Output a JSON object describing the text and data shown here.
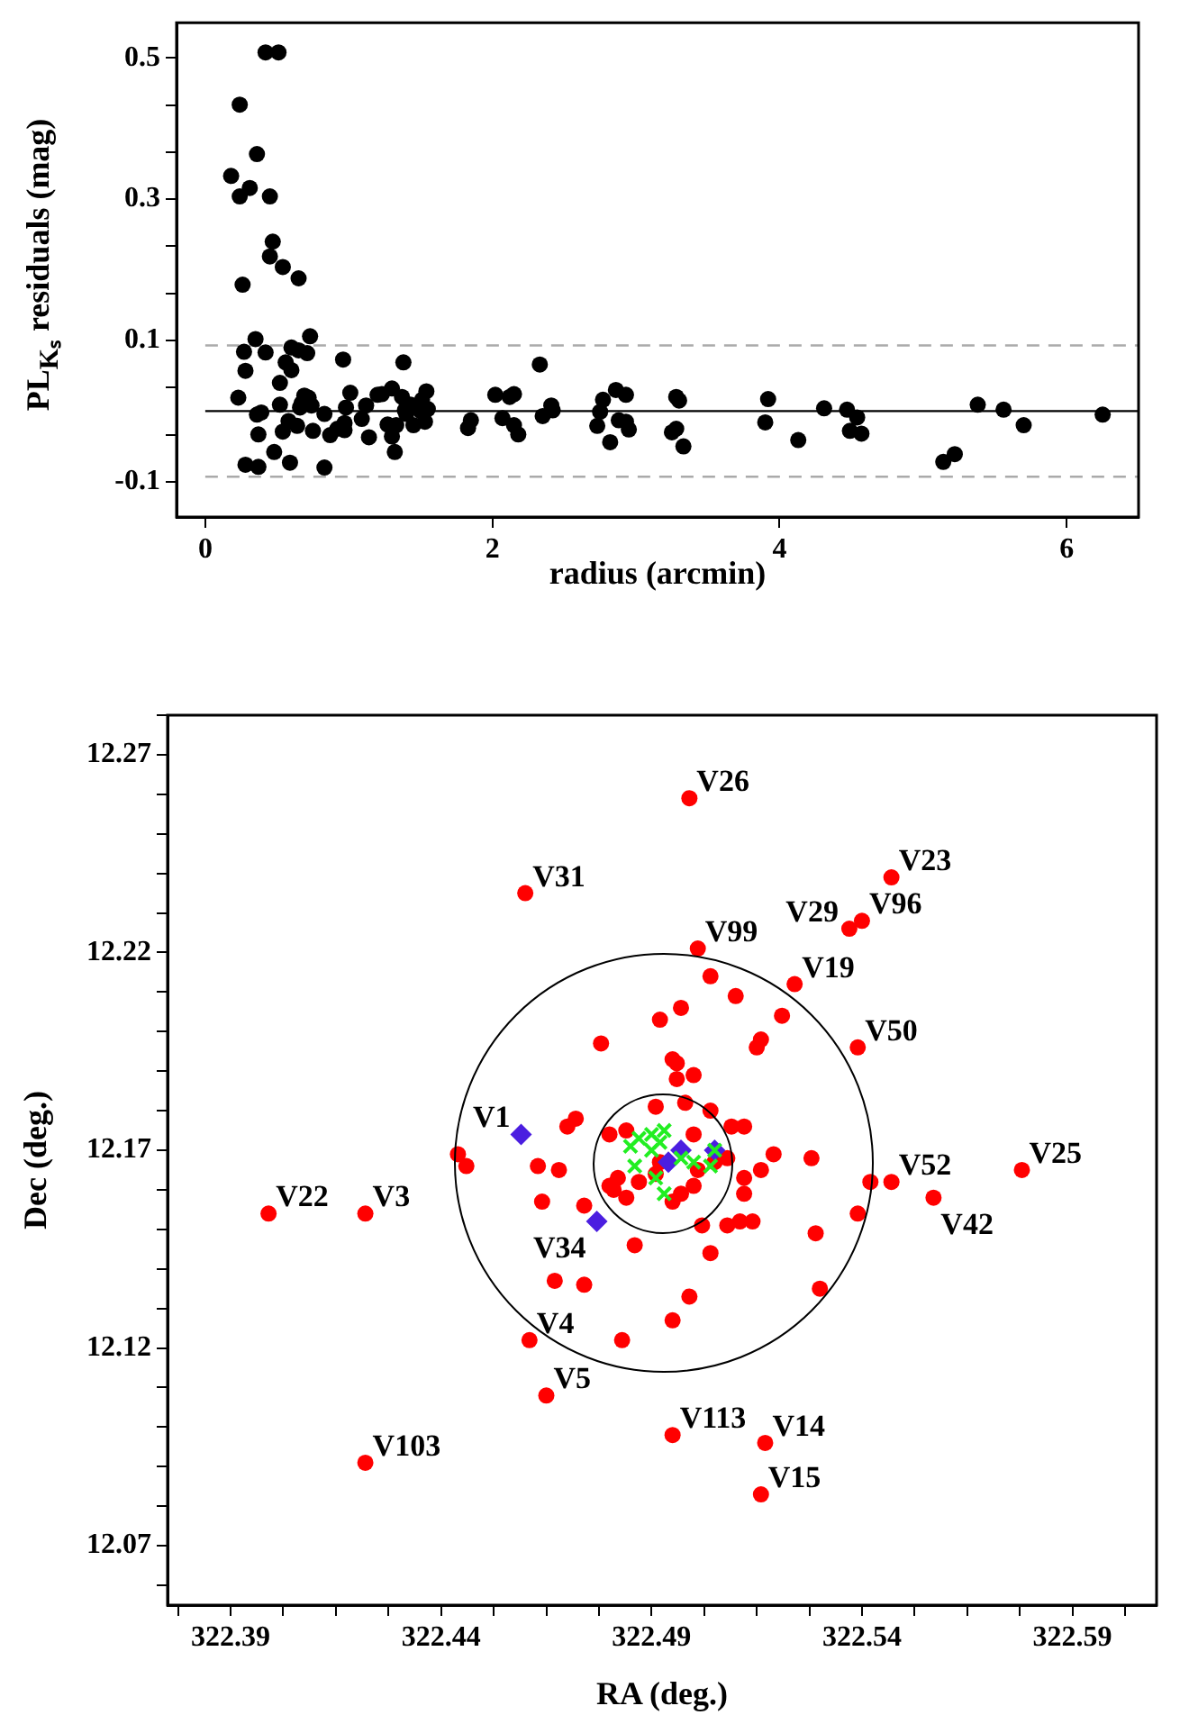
{
  "chart_data": [
    {
      "type": "scatter",
      "xlabel": "radius (arcmin)",
      "ylabel": "PL$_{Kₛ}$ residuals (mag)",
      "xlim": [
        -0.2,
        6.5
      ],
      "ylim": [
        -0.15,
        0.55
      ],
      "xticks": [
        0,
        2,
        4,
        6
      ],
      "yticks": [
        -0.1,
        {
          "value": -0.0333,
          "label": null
        },
        {
          "value": 0.0333,
          "label": null
        },
        0.1,
        {
          "value": 0.1667,
          "label": null
        },
        {
          "value": 0.2333,
          "label": null
        },
        0.3,
        {
          "value": 0.3667,
          "label": null
        },
        {
          "value": 0.4333,
          "label": null
        },
        0.5
      ],
      "ref_lines": [
        {
          "axis": "y",
          "value": 0,
          "color": "#000000",
          "line_style": "solid"
        },
        {
          "axis": "y",
          "value": 0.093,
          "color": "#aaaaaa",
          "line_style": "dashed"
        },
        {
          "axis": "y",
          "value": -0.093,
          "color": "#aaaaaa",
          "line_style": "dashed"
        }
      ],
      "color": "#000000",
      "marker": "circle",
      "x": [
        0.18,
        0.24,
        0.23,
        0.24,
        0.26,
        0.27,
        0.28,
        0.28,
        0.31,
        0.35,
        0.36,
        0.36,
        0.37,
        0.37,
        0.39,
        0.42,
        0.42,
        0.45,
        0.45,
        0.47,
        0.48,
        0.51,
        0.52,
        0.52,
        0.54,
        0.54,
        0.56,
        0.58,
        0.59,
        0.6,
        0.6,
        0.64,
        0.65,
        0.65,
        0.66,
        0.67,
        0.69,
        0.71,
        0.72,
        0.73,
        0.74,
        0.75,
        0.83,
        0.83,
        0.87,
        0.92,
        0.96,
        0.97,
        0.97,
        0.98,
        1.01,
        1.09,
        1.12,
        1.14,
        1.2,
        1.23,
        1.27,
        1.3,
        1.3,
        1.32,
        1.33,
        1.37,
        1.38,
        1.39,
        1.4,
        1.43,
        1.45,
        1.5,
        1.51,
        1.53,
        1.54,
        1.55,
        1.83,
        1.85,
        2.02,
        2.07,
        2.12,
        2.15,
        2.15,
        2.18,
        2.33,
        2.35,
        2.41,
        2.42,
        2.73,
        2.75,
        2.77,
        2.82,
        2.86,
        2.88,
        2.93,
        2.93,
        2.95,
        3.25,
        3.28,
        3.28,
        3.3,
        3.33,
        3.9,
        3.92,
        4.13,
        4.31,
        4.47,
        4.49,
        4.54,
        4.57,
        5.14,
        5.22,
        5.38,
        5.56,
        5.7,
        6.25
      ],
      "values": [
        0.333,
        0.434,
        0.019,
        0.304,
        0.179,
        0.084,
        0.057,
        -0.076,
        0.316,
        0.102,
        0.364,
        -0.005,
        -0.033,
        -0.079,
        -0.002,
        0.508,
        0.083,
        0.304,
        0.219,
        0.24,
        -0.058,
        0.508,
        0.04,
        0.009,
        0.204,
        -0.029,
        0.069,
        -0.014,
        -0.073,
        0.09,
        0.058,
        -0.021,
        0.188,
        0.086,
        0.005,
        0.011,
        0.022,
        0.082,
        0.019,
        0.106,
        0.008,
        -0.028,
        -0.004,
        -0.08,
        -0.034,
        -0.025,
        0.073,
        -0.017,
        -0.027,
        0.005,
        0.026,
        -0.011,
        0.008,
        -0.037,
        0.023,
        0.024,
        -0.019,
        0.032,
        -0.036,
        -0.058,
        -0.02,
        0.02,
        0.069,
        0.001,
        -0.004,
        0.009,
        -0.02,
        0,
        0.016,
        -0.015,
        0.028,
        0.003,
        -0.024,
        -0.013,
        0.023,
        -0.01,
        0.02,
        0.024,
        -0.02,
        -0.033,
        0.066,
        -0.007,
        0.008,
        0.001,
        -0.021,
        -0.001,
        0.016,
        -0.044,
        0.03,
        -0.013,
        0.023,
        -0.015,
        -0.026,
        -0.03,
        0.02,
        -0.025,
        0.015,
        -0.05,
        -0.016,
        0.017,
        -0.041,
        0.004,
        0.002,
        -0.028,
        -0.009,
        -0.032,
        -0.072,
        -0.061,
        0.009,
        0.002,
        -0.02,
        -0.005
      ]
    },
    {
      "type": "scatter",
      "xlabel": "RA (deg.)",
      "ylabel": "Dec (deg.)",
      "xlim": [
        322.375,
        322.61
      ],
      "ylim": [
        12.055,
        12.28
      ],
      "xticks": [
        {
          "value": 322.3775,
          "label": null
        },
        322.39,
        {
          "value": 322.4025,
          "label": null
        },
        {
          "value": 322.415,
          "label": null
        },
        {
          "value": 322.4275,
          "label": null
        },
        322.44,
        {
          "value": 322.4525,
          "label": null
        },
        {
          "value": 322.465,
          "label": null
        },
        {
          "value": 322.4775,
          "label": null
        },
        322.49,
        {
          "value": 322.5025,
          "label": null
        },
        {
          "value": 322.515,
          "label": null
        },
        {
          "value": 322.5275,
          "label": null
        },
        322.54,
        {
          "value": 322.5525,
          "label": null
        },
        {
          "value": 322.565,
          "label": null
        },
        {
          "value": 322.5775,
          "label": null
        },
        322.59,
        {
          "value": 322.6025,
          "label": null
        }
      ],
      "yticks": [
        {
          "value": 12.06,
          "label": null
        },
        12.07,
        {
          "value": 12.08,
          "label": null
        },
        {
          "value": 12.09,
          "label": null
        },
        {
          "value": 12.1,
          "label": null
        },
        {
          "value": 12.11,
          "label": null
        },
        12.12,
        {
          "value": 12.13,
          "label": null
        },
        {
          "value": 12.14,
          "label": null
        },
        {
          "value": 12.15,
          "label": null
        },
        {
          "value": 12.16,
          "label": null
        },
        12.17,
        {
          "value": 12.18,
          "label": null
        },
        {
          "value": 12.19,
          "label": null
        },
        {
          "value": 12.2,
          "label": null
        },
        {
          "value": 12.21,
          "label": null
        },
        12.22,
        {
          "value": 12.23,
          "label": null
        },
        {
          "value": 12.24,
          "label": null
        },
        {
          "value": 12.25,
          "label": null
        },
        {
          "value": 12.26,
          "label": null
        },
        12.27,
        {
          "value": 12.28,
          "label": null
        }
      ],
      "series": [
        {
          "color": "#ff0000",
          "marker": "circle",
          "x": [
            322.499,
            322.46,
            322.547,
            322.54,
            322.537,
            322.501,
            322.524,
            322.539,
            322.547,
            322.578,
            322.557,
            322.399,
            322.422,
            322.461,
            322.465,
            322.495,
            322.517,
            322.516,
            322.422,
            322.504,
            322.51,
            322.497,
            322.492,
            322.521,
            322.516,
            322.515,
            322.478,
            322.495,
            322.496,
            322.496,
            322.5,
            322.472,
            322.47,
            322.463,
            322.468,
            322.464,
            322.474,
            322.444,
            322.446,
            322.491,
            322.498,
            322.504,
            322.509,
            322.512,
            322.519,
            322.516,
            322.528,
            322.542,
            322.539,
            322.529,
            322.512,
            322.512,
            322.508,
            322.511,
            322.514,
            322.502,
            322.504,
            322.486,
            322.467,
            322.474,
            322.499,
            322.495,
            322.483,
            322.53,
            322.48,
            322.484,
            322.5,
            322.482,
            322.481,
            322.484,
            322.495,
            322.497,
            322.5,
            322.491,
            322.487,
            322.48,
            322.492,
            322.501,
            322.505,
            322.508
          ],
          "values": [
            12.259,
            12.235,
            12.239,
            12.228,
            12.226,
            12.221,
            12.212,
            12.196,
            12.162,
            12.165,
            12.158,
            12.154,
            12.154,
            12.122,
            12.108,
            12.098,
            12.096,
            12.083,
            12.091,
            12.214,
            12.209,
            12.206,
            12.203,
            12.204,
            12.198,
            12.196,
            12.197,
            12.193,
            12.192,
            12.188,
            12.189,
            12.178,
            12.176,
            12.166,
            12.165,
            12.157,
            12.156,
            12.169,
            12.166,
            12.181,
            12.182,
            12.18,
            12.176,
            12.176,
            12.169,
            12.165,
            12.168,
            12.162,
            12.154,
            12.149,
            12.163,
            12.159,
            12.151,
            12.152,
            12.152,
            12.151,
            12.144,
            12.146,
            12.137,
            12.136,
            12.133,
            12.127,
            12.122,
            12.135,
            12.174,
            12.175,
            12.174,
            12.163,
            12.16,
            12.158,
            12.157,
            12.159,
            12.161,
            12.164,
            12.162,
            12.161,
            12.167,
            12.165,
            12.167,
            12.168
          ],
          "value_labels": [
            "V26",
            "V31",
            "V23",
            "V96",
            "V29",
            "V99",
            "V19",
            "V50",
            "V52",
            "V25",
            "V42",
            "V22",
            "V3",
            "V4",
            "V5",
            "V113",
            "V14",
            "V15",
            "V103",
            null,
            null,
            null,
            null,
            null,
            null,
            null,
            null,
            null,
            null,
            null,
            null,
            null,
            null,
            null,
            null,
            null,
            null,
            null,
            null,
            null,
            null,
            null,
            null,
            null,
            null,
            null,
            null,
            null,
            null,
            null,
            null,
            null,
            null,
            null,
            null,
            null,
            null,
            null,
            null,
            null,
            null,
            null,
            null,
            null,
            null,
            null,
            null,
            null,
            null,
            null,
            null,
            null,
            null,
            null,
            null,
            null,
            null,
            null,
            null,
            null
          ]
        },
        {
          "color": "#4b1ee0",
          "marker": "diamond",
          "x": [
            322.459,
            322.477,
            322.494,
            322.497,
            322.505
          ],
          "values": [
            12.174,
            12.152,
            12.167,
            12.17,
            12.17
          ],
          "value_labels": [
            "V1",
            "V34",
            null,
            null,
            null
          ]
        },
        {
          "color": "#22ee22",
          "marker": "cross",
          "x": [
            322.485,
            322.487,
            322.49,
            322.493,
            322.486,
            322.49,
            322.492,
            322.497,
            322.5,
            322.504,
            322.491,
            322.493,
            322.505
          ],
          "values": [
            12.171,
            12.173,
            12.174,
            12.175,
            12.166,
            12.17,
            12.172,
            12.168,
            12.167,
            12.166,
            12.163,
            12.159,
            12.17
          ]
        }
      ]
    }
  ]
}
